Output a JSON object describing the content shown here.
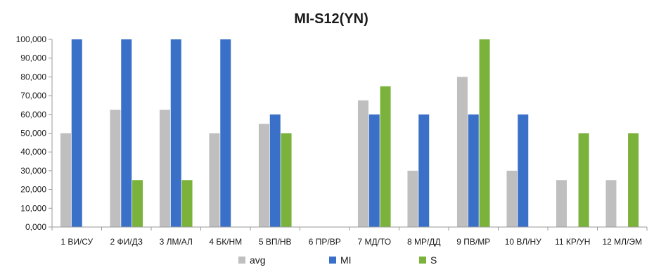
{
  "chart_data": {
    "type": "bar",
    "title": "MI-S12(YN)",
    "categories": [
      "1 ВИ/СУ",
      "2 ФИ/ДЗ",
      "3 ЛМ/АЛ",
      "4 БК/НМ",
      "5 ВП/НВ",
      "6 ПР/ВР",
      "7 МД/ТО",
      "8 МР/ДД",
      "9 ПВ/МР",
      "10 ВЛ/НУ",
      "11 КР/УН",
      "12 МЛ/ЭМ"
    ],
    "series": [
      {
        "name": "avg",
        "color": "#bfbfbf",
        "values": [
          50,
          62.5,
          62.5,
          50,
          55,
          0,
          67.5,
          30,
          80,
          30,
          25,
          25
        ]
      },
      {
        "name": "MI",
        "color": "#3a70c8",
        "values": [
          100,
          100,
          100,
          100,
          60,
          0,
          60,
          60,
          60,
          60,
          0,
          0
        ]
      },
      {
        "name": "S",
        "color": "#7ab23c",
        "values": [
          0,
          25,
          25,
          0,
          50,
          0,
          75,
          0,
          100,
          0,
          50,
          50
        ]
      }
    ],
    "ylim": [
      0,
      100
    ],
    "yticks": [
      "0,000",
      "10,000",
      "20,000",
      "30,000",
      "40,000",
      "50,000",
      "60,000",
      "70,000",
      "80,000",
      "90,000",
      "100,000"
    ],
    "grid": false,
    "legend_position": "bottom"
  }
}
